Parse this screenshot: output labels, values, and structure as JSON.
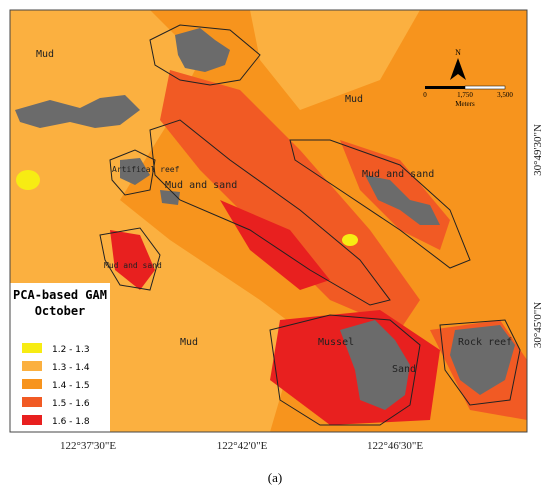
{
  "labels": [
    "Mud",
    "Mud",
    "Artifical reef",
    "Mud and sand",
    "Mud and sand",
    "Mud and sand",
    "Mud",
    "Mussel",
    "Sand",
    "Rock reef"
  ],
  "north": "N",
  "scale": [
    "0",
    "1,750",
    "3,500"
  ],
  "scale_unit": "Meters",
  "legend": {
    "title": "PCA-based GAM",
    "subtitle": "October",
    "items": [
      {
        "label": "1.2 - 1.3",
        "color": "#f7ec13"
      },
      {
        "label": "1.3 - 1.4",
        "color": "#fbb040"
      },
      {
        "label": "1.4 - 1.5",
        "color": "#f7941d"
      },
      {
        "label": "1.5 - 1.6",
        "color": "#f15a24"
      },
      {
        "label": "1.6 - 1.8",
        "color": "#e8201f"
      }
    ]
  },
  "axes": {
    "lon": [
      "122°37'30\"E",
      "122°42'0\"E",
      "122°46'30\"E"
    ],
    "lat": [
      "30°49'30\"N",
      "30°45'0\"N"
    ]
  },
  "caption": "(a)"
}
